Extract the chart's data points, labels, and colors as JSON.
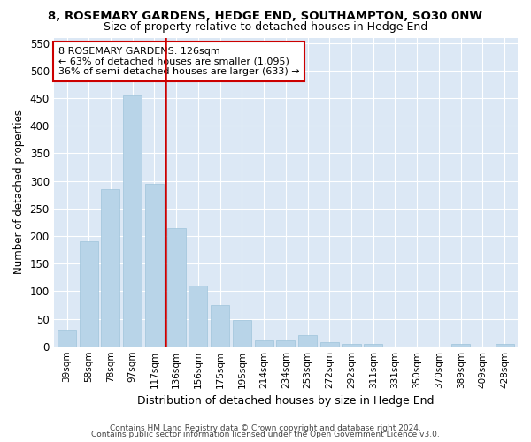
{
  "title": "8, ROSEMARY GARDENS, HEDGE END, SOUTHAMPTON, SO30 0NW",
  "subtitle": "Size of property relative to detached houses in Hedge End",
  "xlabel": "Distribution of detached houses by size in Hedge End",
  "ylabel": "Number of detached properties",
  "categories": [
    "39sqm",
    "58sqm",
    "78sqm",
    "97sqm",
    "117sqm",
    "136sqm",
    "156sqm",
    "175sqm",
    "195sqm",
    "214sqm",
    "234sqm",
    "253sqm",
    "272sqm",
    "292sqm",
    "311sqm",
    "331sqm",
    "350sqm",
    "370sqm",
    "389sqm",
    "409sqm",
    "428sqm"
  ],
  "values": [
    30,
    190,
    285,
    455,
    295,
    215,
    110,
    75,
    47,
    10,
    10,
    20,
    8,
    5,
    5,
    0,
    0,
    0,
    5,
    0,
    5
  ],
  "bar_color": "#b8d4e8",
  "bar_edgecolor": "#9ec4da",
  "vline_color": "#cc0000",
  "annotation_text": "8 ROSEMARY GARDENS: 126sqm\n← 63% of detached houses are smaller (1,095)\n36% of semi-detached houses are larger (633) →",
  "annotation_box_facecolor": "#ffffff",
  "annotation_box_edgecolor": "#cc0000",
  "ylim": [
    0,
    560
  ],
  "yticks": [
    0,
    50,
    100,
    150,
    200,
    250,
    300,
    350,
    400,
    450,
    500,
    550
  ],
  "footer1": "Contains HM Land Registry data © Crown copyright and database right 2024.",
  "footer2": "Contains public sector information licensed under the Open Government Licence v3.0.",
  "fig_facecolor": "#ffffff",
  "plot_facecolor": "#dce8f5"
}
